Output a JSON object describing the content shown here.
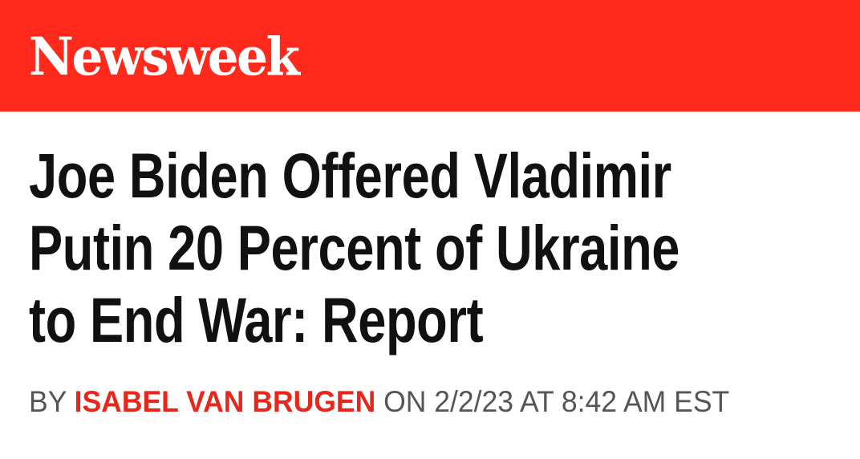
{
  "brand": {
    "name": "Newsweek",
    "color": "#ff2a1c"
  },
  "article": {
    "headline_lines": [
      "Joe Biden Offered Vladimir",
      "Putin 20 Percent of Ukraine",
      "to End War: Report"
    ],
    "byline": {
      "prefix": "BY",
      "author": "ISABEL VAN BRUGEN",
      "date_text": "ON 2/2/23 AT 8:42 AM EST",
      "author_color": "#e8271c"
    }
  }
}
